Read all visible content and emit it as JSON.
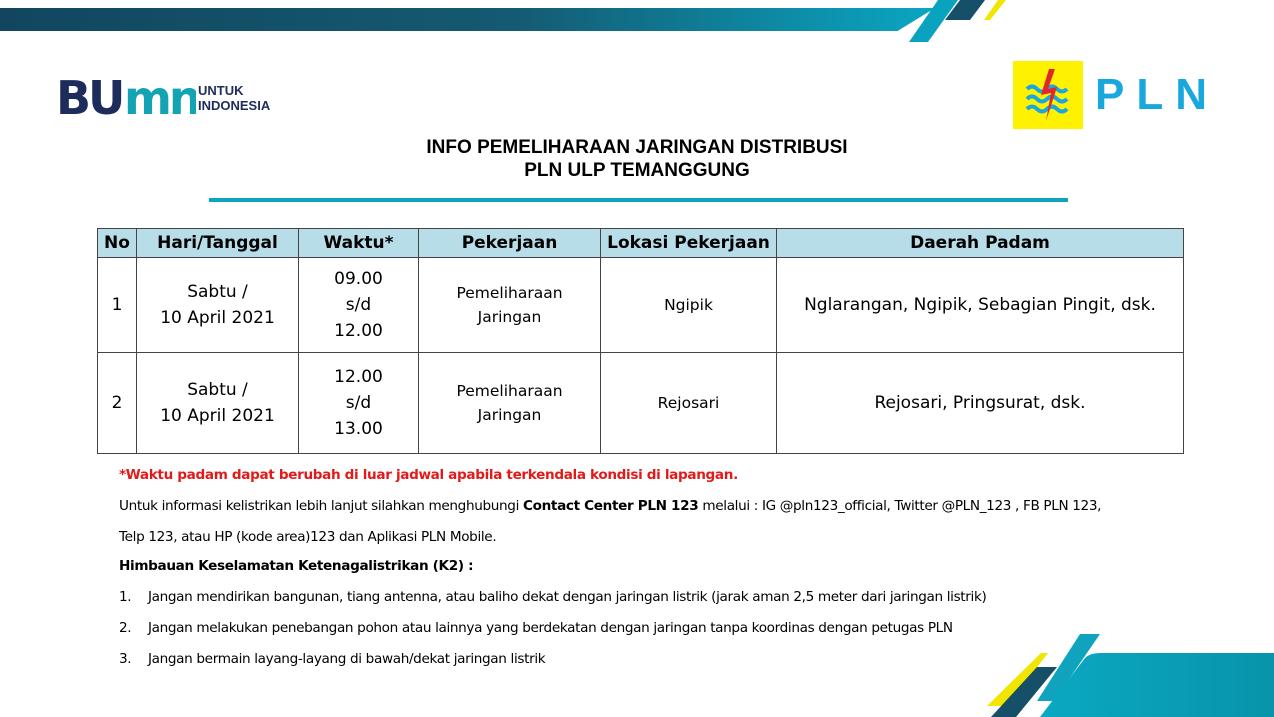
{
  "header": {
    "title_line1": "INFO PEMELIHARAAN  JARINGAN DISTRIBUSI",
    "title_line2": "PLN ULP TEMANGGUNG"
  },
  "logos": {
    "bumn": "BUMN UNTUK INDONESIA",
    "bumn_sub1": "UNTUK",
    "bumn_sub2": "INDONESIA",
    "pln": "PLN"
  },
  "colors": {
    "teal": "#0aa3bf",
    "dark_teal": "#12506a",
    "yellow": "#f2e600",
    "header_fill": "#b7dde8",
    "red": "#e21a1a"
  },
  "table": {
    "headers": [
      "No",
      "Hari/Tanggal",
      "Waktu*",
      "Pekerjaan",
      "Lokasi Pekerjaan",
      "Daerah Padam"
    ],
    "rows": [
      {
        "no": "1",
        "day": "Sabtu /",
        "date": "10 April 2021",
        "start": "09.00",
        "sep": "s/d",
        "end": "12.00",
        "work1": "Pemeliharaan",
        "work2": "Jaringan",
        "location": "Ngipik",
        "area": "Nglarangan, Ngipik, Sebagian Pingit, dsk."
      },
      {
        "no": "2",
        "day": "Sabtu /",
        "date": "10 April 2021",
        "start": "12.00",
        "sep": "s/d",
        "end": "13.00",
        "work1": "Pemeliharaan",
        "work2": "Jaringan",
        "location": "Rejosari",
        "area": "Rejosari, Pringsurat, dsk."
      }
    ]
  },
  "notes": {
    "warning": "*Waktu padam dapat berubah di luar jadwal apabila terkendala kondisi di lapangan.",
    "info_pre": "Untuk informasi kelistrikan lebih lanjut silahkan menghubungi ",
    "info_bold": "Contact Center PLN 123",
    "info_post": " melalui : IG @pln123_official, Twitter @PLN_123 , FB PLN 123,",
    "info_line2": "Telp 123, atau HP (kode area)123 dan Aplikasi PLN Mobile.",
    "k2_title": "Himbauan  Keselamatan Ketenagalistrikan (K2) :",
    "k2_items": [
      {
        "num": "1.",
        "text": "Jangan mendirikan bangunan, tiang antenna, atau baliho dekat dengan jaringan listrik (jarak aman 2,5 meter dari jaringan listrik)"
      },
      {
        "num": "2.",
        "text": "Jangan melakukan penebangan  pohon atau lainnya yang berdekatan dengan jaringan tanpa koordinas dengan petugas PLN"
      },
      {
        "num": "3.",
        "text": "Jangan bermain layang-layang di bawah/dekat jaringan listrik"
      }
    ]
  }
}
